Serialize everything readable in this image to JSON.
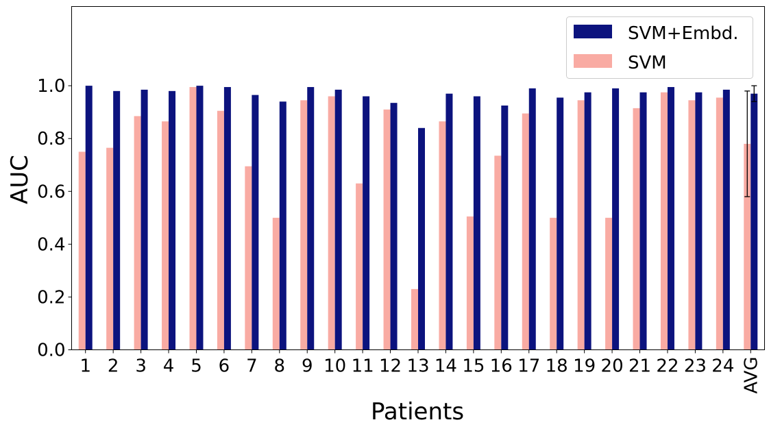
{
  "chart_data": {
    "type": "bar",
    "xlabel": "Patients",
    "ylabel": "AUC",
    "ylim": [
      0,
      1.3
    ],
    "yticks": [
      "0.0",
      "0.2",
      "0.4",
      "0.6",
      "0.8",
      "1.0"
    ],
    "categories": [
      "1",
      "2",
      "3",
      "4",
      "5",
      "6",
      "7",
      "8",
      "9",
      "10",
      "11",
      "12",
      "13",
      "14",
      "15",
      "16",
      "17",
      "18",
      "19",
      "20",
      "21",
      "22",
      "23",
      "24",
      "AVG"
    ],
    "series": [
      {
        "name": "SVM",
        "color": "#f9aba3",
        "values": [
          0.75,
          0.765,
          0.885,
          0.865,
          0.995,
          0.905,
          0.695,
          0.5,
          0.945,
          0.96,
          0.63,
          0.91,
          0.23,
          0.865,
          0.505,
          0.735,
          0.895,
          0.5,
          0.945,
          0.5,
          0.915,
          0.975,
          0.945,
          0.955,
          0.78
        ],
        "error": {
          "AVG": 0.2
        }
      },
      {
        "name": "SVM+Embd.",
        "color": "#0c137e",
        "values": [
          1.0,
          0.98,
          0.985,
          0.98,
          1.0,
          0.995,
          0.965,
          0.94,
          0.995,
          0.985,
          0.96,
          0.935,
          0.84,
          0.97,
          0.96,
          0.925,
          0.99,
          0.955,
          0.975,
          0.99,
          0.975,
          0.995,
          0.975,
          0.985,
          0.97
        ],
        "error": {
          "AVG": 0.03
        }
      }
    ],
    "legend": {
      "position": "top-right",
      "order": [
        "SVM+Embd.",
        "SVM"
      ]
    },
    "grid": false
  }
}
